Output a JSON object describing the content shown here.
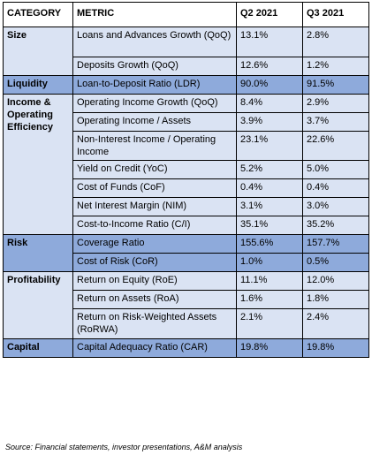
{
  "header": {
    "category": "CATEGORY",
    "metric": "METRIC",
    "q2": "Q2 2021",
    "q3": "Q3 2021"
  },
  "groups": [
    {
      "category": "Size",
      "shade": "light",
      "rows": [
        {
          "metric": "Loans and Advances Growth (QoQ)",
          "q2": "13.1%",
          "q3": "2.8%"
        },
        {
          "metric": "Deposits Growth (QoQ)",
          "q2": "12.6%",
          "q3": "1.2%"
        }
      ]
    },
    {
      "category": "Liquidity",
      "shade": "dark",
      "rows": [
        {
          "metric": "Loan-to-Deposit Ratio (LDR)",
          "q2": "90.0%",
          "q3": "91.5%"
        }
      ]
    },
    {
      "category": "Income & Operating Efficiency",
      "shade": "light",
      "rows": [
        {
          "metric": "Operating Income Growth (QoQ)",
          "q2": "8.4%",
          "q3": "2.9%"
        },
        {
          "metric": "Operating Income / Assets",
          "q2": "3.9%",
          "q3": "3.7%"
        },
        {
          "metric": "Non-Interest Income / Operating Income",
          "q2": "23.1%",
          "q3": "22.6%"
        },
        {
          "metric": "Yield on Credit (YoC)",
          "q2": "5.2%",
          "q3": "5.0%"
        },
        {
          "metric": "Cost of Funds (CoF)",
          "q2": "0.4%",
          "q3": "0.4%"
        },
        {
          "metric": "Net Interest Margin (NIM)",
          "q2": "3.1%",
          "q3": "3.0%"
        },
        {
          "metric": "Cost-to-Income Ratio (C/I)",
          "q2": "35.1%",
          "q3": "35.2%"
        }
      ]
    },
    {
      "category": "Risk",
      "shade": "dark",
      "rows": [
        {
          "metric": "Coverage Ratio",
          "q2": "155.6%",
          "q3": "157.7%"
        },
        {
          "metric": "Cost of Risk (CoR)",
          "q2": "1.0%",
          "q3": "0.5%"
        }
      ]
    },
    {
      "category": "Profitability",
      "shade": "light",
      "rows": [
        {
          "metric": "Return on Equity (RoE)",
          "q2": "11.1%",
          "q3": "12.0%"
        },
        {
          "metric": "Return on Assets (RoA)",
          "q2": "1.6%",
          "q3": "1.8%"
        },
        {
          "metric": "Return on Risk-Weighted Assets (RoRWA)",
          "q2": "2.1%",
          "q3": "2.4%"
        }
      ]
    },
    {
      "category": "Capital",
      "shade": "dark",
      "rows": [
        {
          "metric": "Capital Adequacy Ratio (CAR)",
          "q2": "19.8%",
          "q3": "19.8%"
        }
      ]
    }
  ],
  "source": "Source: Financial statements, investor presentations, A&M analysis"
}
